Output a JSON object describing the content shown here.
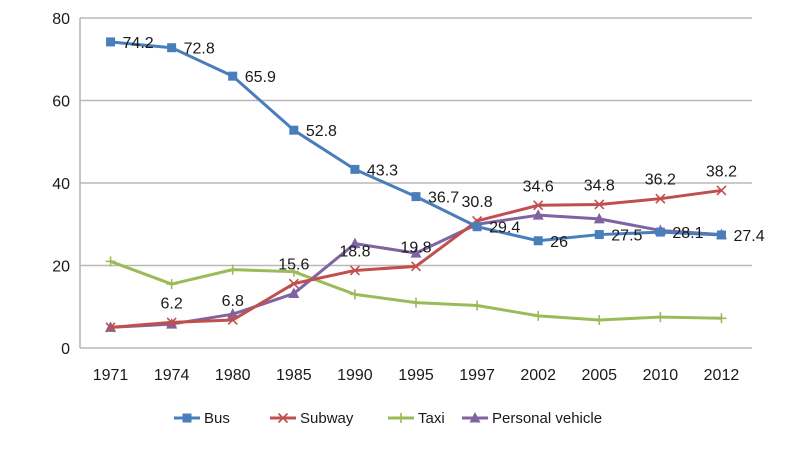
{
  "chart_data": {
    "type": "line",
    "categories": [
      "1971",
      "1974",
      "1980",
      "1985",
      "1990",
      "1995",
      "1997",
      "2002",
      "2005",
      "2010",
      "2012"
    ],
    "ylim": [
      0,
      80
    ],
    "yticks": [
      "0",
      "20",
      "40",
      "60",
      "80"
    ],
    "grid": true,
    "legend_position": "bottom",
    "series": [
      {
        "name": "Bus",
        "color": "#4a7ebb",
        "marker": "square",
        "values": [
          74.2,
          72.8,
          65.9,
          52.8,
          43.3,
          36.7,
          29.4,
          26,
          27.5,
          28.1,
          27.4
        ]
      },
      {
        "name": "Subway",
        "color": "#c0504d",
        "marker": "x",
        "values": [
          5,
          6.2,
          6.8,
          15.6,
          18.8,
          19.8,
          30.8,
          34.6,
          34.8,
          36.2,
          38.2
        ]
      },
      {
        "name": "Taxi",
        "color": "#9bbb59",
        "marker": "plus",
        "values": [
          21,
          15.5,
          19,
          18.5,
          13,
          11,
          10.3,
          7.8,
          6.8,
          7.5,
          7.2
        ]
      },
      {
        "name": "Personal vehicle",
        "color": "#8064a2",
        "marker": "triangle",
        "values": [
          5,
          5.8,
          8.2,
          13.2,
          25.3,
          23,
          30,
          32.2,
          31.3,
          28.5,
          27.5
        ]
      }
    ],
    "data_labels": [
      {
        "series": 0,
        "index": 0,
        "text": "74.2"
      },
      {
        "series": 0,
        "index": 1,
        "text": "72.8"
      },
      {
        "series": 0,
        "index": 2,
        "text": "65.9"
      },
      {
        "series": 0,
        "index": 3,
        "text": "52.8"
      },
      {
        "series": 0,
        "index": 4,
        "text": "43.3"
      },
      {
        "series": 0,
        "index": 5,
        "text": "36.7"
      },
      {
        "series": 0,
        "index": 6,
        "text": "29.4"
      },
      {
        "series": 0,
        "index": 7,
        "text": "26"
      },
      {
        "series": 0,
        "index": 8,
        "text": "27.5"
      },
      {
        "series": 0,
        "index": 9,
        "text": "28.1"
      },
      {
        "series": 0,
        "index": 10,
        "text": "27.4"
      },
      {
        "series": 1,
        "index": 1,
        "text": "6.2"
      },
      {
        "series": 1,
        "index": 2,
        "text": "6.8"
      },
      {
        "series": 1,
        "index": 3,
        "text": "15.6"
      },
      {
        "series": 1,
        "index": 4,
        "text": "18.8"
      },
      {
        "series": 1,
        "index": 5,
        "text": "19.8"
      },
      {
        "series": 1,
        "index": 6,
        "text": "30.8"
      },
      {
        "series": 1,
        "index": 7,
        "text": "34.6"
      },
      {
        "series": 1,
        "index": 8,
        "text": "34.8"
      },
      {
        "series": 1,
        "index": 9,
        "text": "36.2"
      },
      {
        "series": 1,
        "index": 10,
        "text": "38.2"
      }
    ]
  }
}
